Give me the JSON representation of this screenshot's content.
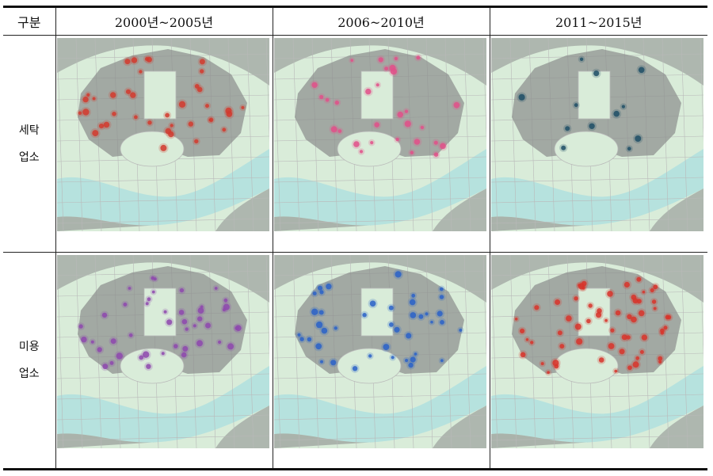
{
  "table": {
    "header": [
      "구분",
      "2000년~2005년",
      "2006~2010년",
      "2011~2015년"
    ],
    "rows": [
      {
        "label_lines": [
          "세탁",
          "업소"
        ],
        "maps": [
          {
            "dot_color": "#d23a2e",
            "dot_count": 38
          },
          {
            "dot_color": "#e2508a",
            "dot_count": 30
          },
          {
            "dot_color": "#1f4f66",
            "dot_count": 12
          }
        ]
      },
      {
        "label_lines": [
          "미용",
          "업소"
        ],
        "maps": [
          {
            "dot_color": "#8e48ae",
            "dot_count": 44
          },
          {
            "dot_color": "#2a62c8",
            "dot_count": 42
          },
          {
            "dot_color": "#d8342a",
            "dot_count": 60
          }
        ]
      }
    ]
  },
  "colors": {
    "map_background": "#d9ecd9",
    "river": "#b6e2de",
    "urban_blocks": "#8a8d8c",
    "roads": "#b9b9b9",
    "border": "#111111"
  }
}
